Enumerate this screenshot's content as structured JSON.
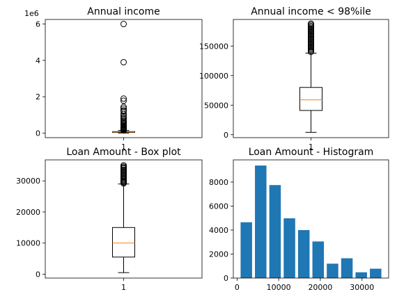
{
  "colors": {
    "box": "#000000",
    "median": "#ff7f0e",
    "bar": "#1f77b4",
    "background": "#ffffff"
  },
  "chart_data": [
    {
      "id": "annual-income",
      "type": "box",
      "title": "Annual income",
      "xticklabels": [
        "1"
      ],
      "ylim": [
        -250000,
        6250000
      ],
      "yticks": [
        0,
        2000000,
        4000000,
        6000000
      ],
      "yticklabels": [
        "0",
        "2",
        "4",
        "6"
      ],
      "y_offset_label": "1e6",
      "box": {
        "min": 4000,
        "q1": 40000,
        "median": 59000,
        "q3": 82000,
        "max": 145000
      },
      "outliers": [
        6000000,
        3900000,
        1900000,
        1780000,
        1440000,
        1350000,
        1250000,
        1200000,
        1050000,
        950000,
        870000,
        800000,
        720000,
        650000,
        600000,
        540000,
        480000,
        420000,
        380000,
        340000,
        300000,
        260000,
        230000,
        200000,
        180000,
        160000,
        150000
      ]
    },
    {
      "id": "annual-income-98",
      "type": "box",
      "title": "Annual income < 98%ile",
      "xticklabels": [
        "1"
      ],
      "ylim": [
        -5000,
        195000
      ],
      "yticks": [
        0,
        50000,
        100000,
        150000
      ],
      "yticklabels": [
        "0",
        "50000",
        "100000",
        "150000"
      ],
      "box": {
        "min": 4000,
        "q1": 41000,
        "median": 59000,
        "q3": 80000,
        "max": 138000
      },
      "outliers": [
        140000,
        142000,
        144000,
        146000,
        148000,
        150000,
        152000,
        154000,
        156000,
        158000,
        160000,
        162000,
        164000,
        166000,
        168000,
        170000,
        172000,
        174000,
        176000,
        178000,
        180000,
        182000,
        184000,
        186000,
        188000
      ]
    },
    {
      "id": "loan-amount-box",
      "type": "box",
      "title": "Loan Amount - Box plot",
      "xticklabels": [
        "1"
      ],
      "ylim": [
        -1250,
        36750
      ],
      "yticks": [
        0,
        10000,
        20000,
        30000
      ],
      "yticklabels": [
        "0",
        "10000",
        "20000",
        "30000"
      ],
      "box": {
        "min": 500,
        "q1": 5500,
        "median": 10000,
        "q3": 15000,
        "max": 29000
      },
      "outliers": [
        29200,
        29500,
        29800,
        30000,
        30300,
        30600,
        31000,
        31300,
        31600,
        32000,
        32300,
        32600,
        33000,
        33300,
        33600,
        34000,
        34300,
        34600,
        35000
      ]
    },
    {
      "id": "loan-amount-hist",
      "type": "bar",
      "title": "Loan Amount - Histogram",
      "xlim": [
        -900,
        36400
      ],
      "ylim": [
        0,
        9850
      ],
      "xticks": [
        0,
        10000,
        20000,
        30000
      ],
      "xticklabels": [
        "0",
        "10000",
        "20000",
        "30000"
      ],
      "yticks": [
        0,
        2000,
        4000,
        6000,
        8000
      ],
      "yticklabels": [
        "0",
        "2000",
        "4000",
        "6000",
        "8000"
      ],
      "bin_centers": [
        2225,
        5675,
        9125,
        12575,
        16025,
        19475,
        22925,
        26375,
        29825,
        33275
      ],
      "bin_width": 2760,
      "values": [
        4650,
        9380,
        7750,
        4980,
        4000,
        3050,
        1200,
        1650,
        480,
        780
      ]
    }
  ]
}
